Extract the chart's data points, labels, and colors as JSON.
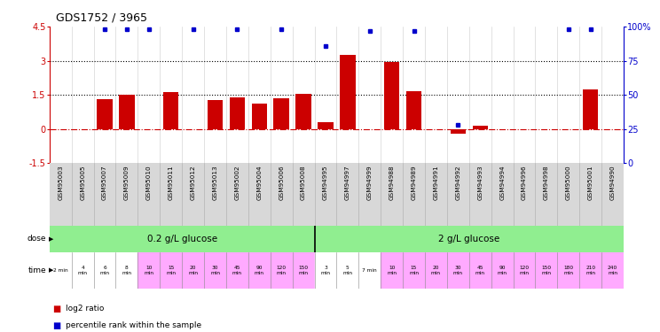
{
  "title": "GDS1752 / 3965",
  "samples": [
    "GSM95003",
    "GSM95005",
    "GSM95007",
    "GSM95009",
    "GSM95010",
    "GSM95011",
    "GSM95012",
    "GSM95013",
    "GSM95002",
    "GSM95004",
    "GSM95006",
    "GSM95008",
    "GSM94995",
    "GSM94997",
    "GSM94999",
    "GSM94988",
    "GSM94989",
    "GSM94991",
    "GSM94992",
    "GSM94993",
    "GSM94994",
    "GSM94996",
    "GSM94998",
    "GSM95000",
    "GSM95001",
    "GSM94990"
  ],
  "log2_ratio": [
    0,
    0,
    1.3,
    1.5,
    0,
    1.6,
    0,
    1.25,
    1.4,
    1.1,
    1.35,
    1.55,
    0.3,
    3.25,
    0,
    2.95,
    1.65,
    0,
    -0.2,
    0.15,
    0,
    0,
    0,
    0,
    1.75,
    0
  ],
  "percentile": [
    null,
    null,
    98,
    98,
    98,
    null,
    98,
    null,
    98,
    null,
    98,
    null,
    86,
    null,
    97,
    null,
    97,
    null,
    28,
    null,
    null,
    null,
    null,
    98,
    98,
    null
  ],
  "dose_boundary": 12,
  "time_labels_raw": [
    "2 min",
    "4\nmin",
    "6\nmin",
    "8\nmin",
    "10\nmin",
    "15\nmin",
    "20\nmin",
    "30\nmin",
    "45\nmin",
    "90\nmin",
    "120\nmin",
    "150\nmin",
    "3\nmin",
    "5\nmin",
    "7 min",
    "10\nmin",
    "15\nmin",
    "20\nmin",
    "30\nmin",
    "45\nmin",
    "90\nmin",
    "120\nmin",
    "150\nmin",
    "180\nmin",
    "210\nmin",
    "240\nmin"
  ],
  "time_colors": [
    "#ffffff",
    "#ffffff",
    "#ffffff",
    "#ffffff",
    "#ffaaff",
    "#ffaaff",
    "#ffaaff",
    "#ffaaff",
    "#ffaaff",
    "#ffaaff",
    "#ffaaff",
    "#ffaaff",
    "#ffffff",
    "#ffffff",
    "#ffffff",
    "#ffaaff",
    "#ffaaff",
    "#ffaaff",
    "#ffaaff",
    "#ffaaff",
    "#ffaaff",
    "#ffaaff",
    "#ffaaff",
    "#ffaaff",
    "#ffaaff",
    "#ffaaff"
  ],
  "bar_color": "#cc0000",
  "dot_color": "#0000cc",
  "ylim_left": [
    -1.5,
    4.5
  ],
  "ylim_right": [
    0,
    100
  ],
  "yticks_left": [
    -1.5,
    0,
    1.5,
    3,
    4.5
  ],
  "ytick_labels_left": [
    "-1.5",
    "0",
    "1.5",
    "3",
    "4.5"
  ],
  "yticks_right": [
    0,
    25,
    50,
    75,
    100
  ],
  "ytick_labels_right": [
    "0",
    "25",
    "50",
    "75",
    "100%"
  ],
  "hlines": [
    0,
    1.5,
    3
  ],
  "hline_styles": [
    "dashdot",
    "dotted",
    "dotted"
  ],
  "hline_colors": [
    "#cc0000",
    "#000000",
    "#000000"
  ],
  "dose_label1": "0.2 g/L glucose",
  "dose_label2": "2 g/L glucose",
  "dose_color": "#90ee90",
  "legend_items": [
    {
      "color": "#cc0000",
      "label": "log2 ratio"
    },
    {
      "color": "#0000cc",
      "label": "percentile rank within the sample"
    }
  ],
  "background_color": "#ffffff",
  "sample_bg_color": "#d8d8d8",
  "n_samples": 26,
  "n_dose1": 12,
  "n_dose2": 14
}
